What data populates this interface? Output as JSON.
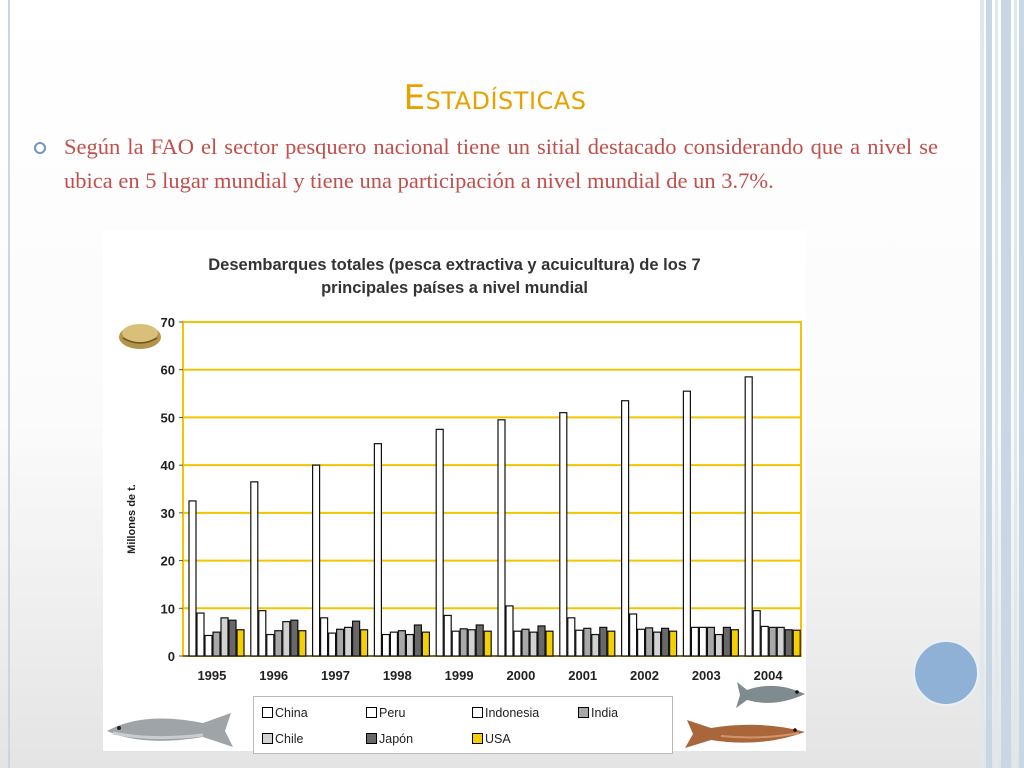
{
  "slide": {
    "title": "Estadísticas",
    "bullet": "Según la FAO el sector pesquero nacional tiene un sitial destacado considerando que a nivel se ubica en 5 lugar mundial y tiene una participación a nivel mundial de un 3.7%."
  },
  "colors": {
    "title": "#e8a200",
    "bullet_text": "#c0504d",
    "grid": "#f2c500",
    "accent_circle": "#8fb1d5",
    "stripes": "#c9d6e3"
  },
  "chart_data": {
    "type": "bar",
    "title_lines": [
      "Desembarques totales (pesca extractiva y acuicultura) de los 7",
      "principales países a nivel mundial"
    ],
    "ylabel": "Millones  de t.",
    "xlabel": "",
    "ylim": [
      0,
      70
    ],
    "yticks": [
      0,
      10,
      20,
      30,
      40,
      50,
      60,
      70
    ],
    "grid": true,
    "categories": [
      "1995",
      "1996",
      "1997",
      "1998",
      "1999",
      "2000",
      "2001",
      "2002",
      "2003",
      "2004"
    ],
    "series": [
      {
        "name": "China",
        "fill": "#ffffff",
        "values": [
          32.5,
          36.5,
          40,
          44.5,
          47.5,
          49.5,
          51,
          53.5,
          55.5,
          58.5
        ]
      },
      {
        "name": "Peru",
        "fill": "#ffffff",
        "values": [
          9,
          9.5,
          8,
          4.5,
          8.5,
          10.5,
          8,
          8.8,
          6,
          9.5
        ]
      },
      {
        "name": "Indonesia",
        "fill": "#ffffff",
        "values": [
          4.3,
          4.5,
          4.8,
          5,
          5.2,
          5.2,
          5.4,
          5.6,
          6,
          6.2
        ]
      },
      {
        "name": "India",
        "fill": "#a8a8a8",
        "values": [
          5,
          5.3,
          5.6,
          5.3,
          5.7,
          5.6,
          5.8,
          5.9,
          6,
          6
        ]
      },
      {
        "name": "Chile",
        "fill": "#d2d2d2",
        "values": [
          8,
          7.2,
          6,
          4.5,
          5.5,
          5,
          4.5,
          5,
          4.5,
          6
        ]
      },
      {
        "name": "Japón",
        "fill": "#686868",
        "values": [
          7.5,
          7.5,
          7.3,
          6.5,
          6.5,
          6.3,
          6,
          5.8,
          6,
          5.5
        ]
      },
      {
        "name": "USA",
        "fill": "#f5d000",
        "values": [
          5.5,
          5.3,
          5.5,
          5,
          5.2,
          5.2,
          5.2,
          5.2,
          5.5,
          5.4
        ]
      }
    ],
    "legend_placement": "bottom"
  }
}
